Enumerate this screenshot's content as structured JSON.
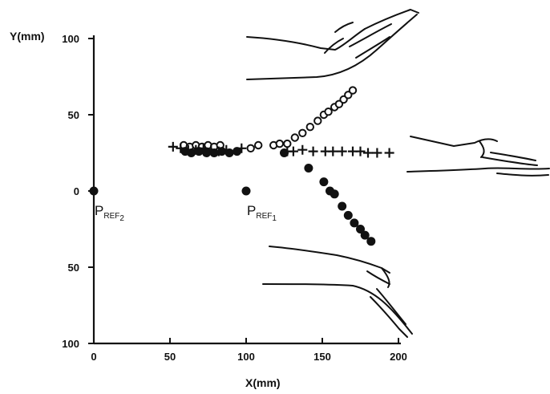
{
  "chart_data": {
    "type": "scatter",
    "title": "",
    "xlabel": "X(mm)",
    "ylabel": "Y(mm)",
    "xlim": [
      0,
      200
    ],
    "ylim": [
      -100,
      100
    ],
    "grid": false,
    "x_ticks": [
      {
        "value": 0,
        "label": "0"
      },
      {
        "value": 50,
        "label": "50"
      },
      {
        "value": 100,
        "label": "100"
      },
      {
        "value": 150,
        "label": "150"
      },
      {
        "value": 200,
        "label": "200"
      }
    ],
    "y_ticks": [
      {
        "value": 100,
        "label": "100"
      },
      {
        "value": 50,
        "label": "50"
      },
      {
        "value": 0,
        "label": "0"
      },
      {
        "value": -50,
        "label": "50"
      },
      {
        "value": -100,
        "label": "100"
      }
    ],
    "series": [
      {
        "marker": "open-circle",
        "x": [
          59,
          63,
          67,
          71,
          75,
          79,
          83,
          103,
          108,
          118,
          122,
          127,
          132,
          137,
          142,
          147,
          151,
          154,
          158,
          161,
          164,
          167,
          170
        ],
        "y": [
          30,
          29,
          30,
          29,
          30,
          29,
          30,
          28,
          30,
          30,
          31,
          31,
          35,
          38,
          42,
          46,
          50,
          52,
          55,
          57,
          60,
          63,
          66
        ]
      },
      {
        "marker": "plus",
        "x": [
          52,
          57,
          62,
          67,
          72,
          77,
          82,
          87,
          97,
          127,
          131,
          137,
          144,
          152,
          157,
          163,
          170,
          175,
          180,
          186,
          194
        ],
        "y": [
          29,
          28,
          27,
          27,
          28,
          27,
          26,
          27,
          28,
          26,
          26,
          27,
          26,
          26,
          26,
          26,
          26,
          26,
          25,
          25,
          25
        ]
      },
      {
        "marker": "filled-circle",
        "x": [
          60,
          64,
          69,
          74,
          79,
          84,
          89,
          94,
          100,
          125,
          141,
          151,
          155,
          158,
          163,
          167,
          171,
          175,
          178,
          182
        ],
        "y": [
          26,
          25,
          26,
          25,
          25,
          26,
          25,
          26,
          0,
          25,
          15,
          6,
          0,
          -2,
          -10,
          -16,
          -21,
          -25,
          -29,
          -33
        ]
      },
      {
        "marker": "filled-circle",
        "x": [
          0
        ],
        "y": [
          0
        ]
      }
    ],
    "annotations": [
      {
        "main": "P",
        "sub": "REF",
        "index": "2",
        "x": 0,
        "y": 0
      },
      {
        "main": "P",
        "sub": "REF",
        "index": "1",
        "x": 100,
        "y": 0
      }
    ]
  }
}
